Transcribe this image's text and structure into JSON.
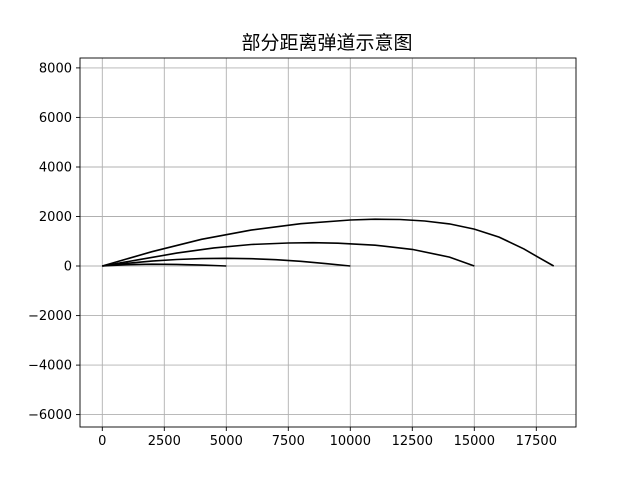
{
  "chart_data": {
    "type": "line",
    "title": "部分距离弹道示意图",
    "xlabel": "",
    "ylabel": "",
    "xlim": [
      -900,
      19100
    ],
    "ylim": [
      -6500,
      8400
    ],
    "grid": true,
    "x_ticks": [
      0,
      2500,
      5000,
      7500,
      10000,
      12500,
      15000,
      17500
    ],
    "x_tick_labels": [
      "0",
      "2500",
      "5000",
      "7500",
      "10000",
      "12500",
      "15000",
      "17500"
    ],
    "y_ticks": [
      -6000,
      -4000,
      -2000,
      0,
      2000,
      4000,
      6000,
      8000
    ],
    "y_tick_labels": [
      "−6000",
      "−4000",
      "−2000",
      "0",
      "2000",
      "4000",
      "6000",
      "8000"
    ],
    "series_color": "#000000",
    "series": [
      {
        "x": [
          0,
          1000,
          2000,
          3000,
          4000,
          4500,
          5000
        ],
        "y": [
          0,
          55,
          75,
          65,
          38,
          20,
          0
        ]
      },
      {
        "x": [
          0,
          1000,
          2000,
          3000,
          4000,
          5000,
          6000,
          7000,
          8000,
          9000,
          10000
        ],
        "y": [
          0,
          110,
          200,
          265,
          300,
          310,
          295,
          255,
          190,
          100,
          0
        ]
      },
      {
        "x": [
          0,
          1500,
          3000,
          4500,
          6000,
          7500,
          8500,
          9500,
          11000,
          12500,
          14000,
          15000
        ],
        "y": [
          0,
          260,
          520,
          730,
          870,
          930,
          940,
          920,
          840,
          670,
          360,
          0
        ]
      },
      {
        "x": [
          0,
          2000,
          4000,
          6000,
          8000,
          10000,
          11000,
          12000,
          13000,
          14000,
          15000,
          16000,
          17000,
          17600,
          18200
        ],
        "y": [
          0,
          580,
          1080,
          1450,
          1710,
          1860,
          1890,
          1880,
          1820,
          1700,
          1490,
          1170,
          690,
          340,
          0
        ]
      }
    ]
  }
}
